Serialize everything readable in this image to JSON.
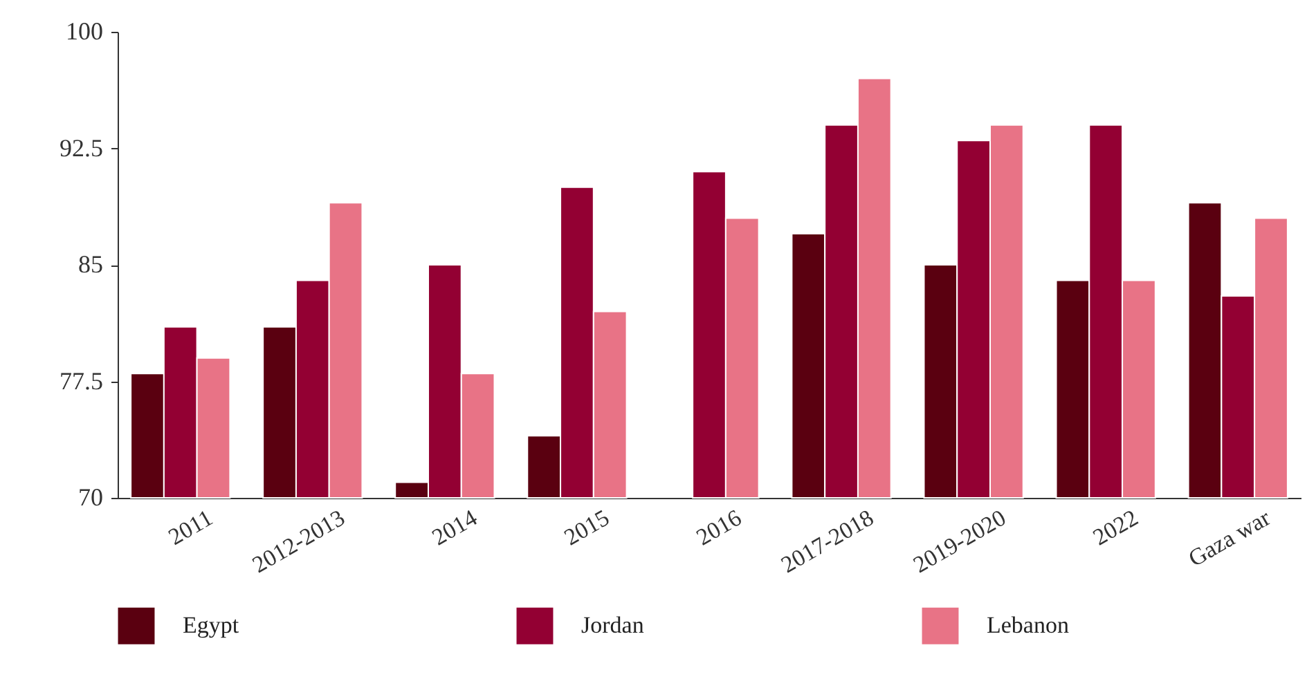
{
  "chart_data": {
    "type": "bar",
    "categories": [
      "2011",
      "2012-2013",
      "2014",
      "2015",
      "2016",
      "2017-2018",
      "2019-2020",
      "2022",
      "Gaza war"
    ],
    "series": [
      {
        "name": "Egypt",
        "color": "#5a0010",
        "values": [
          78,
          81,
          71,
          74,
          null,
          87,
          85,
          84,
          89
        ]
      },
      {
        "name": "Jordan",
        "color": "#930033",
        "values": [
          81,
          84,
          85,
          90,
          91,
          94,
          93,
          94,
          83
        ]
      },
      {
        "name": "Lebanon",
        "color": "#e87386",
        "values": [
          79,
          89,
          78,
          82,
          88,
          97,
          94,
          84,
          88
        ]
      }
    ],
    "ylim": [
      70,
      100
    ],
    "yticks": [
      70,
      77.5,
      85,
      92.5,
      100
    ],
    "grid": false,
    "legend": "bottom"
  }
}
